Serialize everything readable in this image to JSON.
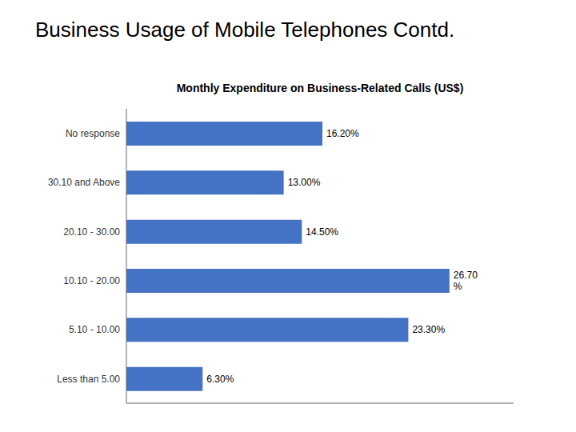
{
  "chart_data": {
    "type": "bar",
    "title": "Business Usage of Mobile Telephones Contd.",
    "subtitle": "Monthly Expenditure on Business-Related Calls (US$)",
    "orientation": "horizontal",
    "categories": [
      "No response",
      "30.10 and Above",
      "20.10 - 30.00",
      "10.10 - 20.00",
      "5.10 - 10.00",
      "Less than 5.00"
    ],
    "values": [
      16.2,
      13.0,
      14.5,
      26.7,
      23.3,
      6.3
    ],
    "value_labels": [
      "16.20%",
      "13.00%",
      "14.50%",
      "26.70\n%",
      "23.30%",
      "6.30%"
    ],
    "data_labels": true,
    "color": "#4472C4",
    "xlim": [
      0,
      32
    ],
    "tick_labels": "y",
    "grid": false
  }
}
